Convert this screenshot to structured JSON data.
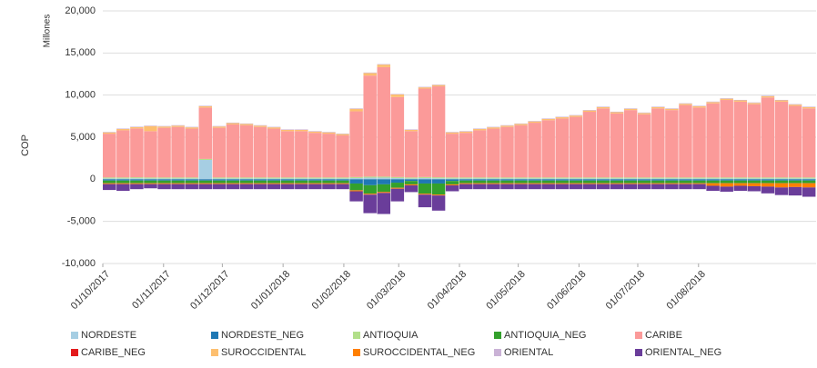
{
  "chart_data": {
    "type": "stacked-bar",
    "y_label": "COP",
    "y_unit_label": "Millones",
    "x": [
      "2017-10-01",
      "2017-10-08",
      "2017-10-15",
      "2017-10-22",
      "2017-10-29",
      "2017-11-05",
      "2017-11-12",
      "2017-11-19",
      "2017-11-26",
      "2017-12-03",
      "2017-12-10",
      "2017-12-17",
      "2017-12-24",
      "2017-12-31",
      "2018-01-07",
      "2018-01-14",
      "2018-01-21",
      "2018-01-28",
      "2018-02-04",
      "2018-02-11",
      "2018-02-18",
      "2018-02-25",
      "2018-03-04",
      "2018-03-11",
      "2018-03-18",
      "2018-03-25",
      "2018-04-01",
      "2018-04-08",
      "2018-04-15",
      "2018-04-22",
      "2018-04-29",
      "2018-05-06",
      "2018-05-13",
      "2018-05-20",
      "2018-05-27",
      "2018-06-03",
      "2018-06-10",
      "2018-06-17",
      "2018-06-24",
      "2018-07-01",
      "2018-07-08",
      "2018-07-15",
      "2018-07-22",
      "2018-07-29",
      "2018-08-05",
      "2018-08-12",
      "2018-08-19",
      "2018-08-26",
      "2018-09-02",
      "2018-09-09",
      "2018-09-16",
      "2018-09-23"
    ],
    "xlim": [
      "2017-10-01",
      "2018-09-30"
    ],
    "xticks": [
      {
        "value": "2017-10-01",
        "label": "01/10/2017"
      },
      {
        "value": "2017-11-01",
        "label": "01/11/2017"
      },
      {
        "value": "2017-12-01",
        "label": "01/12/2017"
      },
      {
        "value": "2018-01-01",
        "label": "01/01/2018"
      },
      {
        "value": "2018-02-01",
        "label": "01/02/2018"
      },
      {
        "value": "2018-03-01",
        "label": "01/03/2018"
      },
      {
        "value": "2018-04-01",
        "label": "01/04/2018"
      },
      {
        "value": "2018-05-01",
        "label": "01/05/2018"
      },
      {
        "value": "2018-06-01",
        "label": "01/06/2018"
      },
      {
        "value": "2018-07-01",
        "label": "01/07/2018"
      },
      {
        "value": "2018-08-01",
        "label": "01/08/2018"
      }
    ],
    "ylim": [
      -10000,
      20000
    ],
    "yticks": [
      {
        "value": -10000,
        "label": "-10,000"
      },
      {
        "value": -5000,
        "label": "-5,000"
      },
      0,
      {
        "value": 5000,
        "label": "5,000"
      },
      {
        "value": 10000,
        "label": "10,000"
      },
      {
        "value": 15000,
        "label": "15,000"
      },
      {
        "value": 20000,
        "label": "20,000"
      }
    ],
    "grid": true,
    "legend": "bottom",
    "series": [
      {
        "name": "NORDESTE",
        "color": "#a6cee3",
        "values": [
          100,
          100,
          120,
          100,
          100,
          100,
          100,
          2300,
          100,
          100,
          100,
          100,
          100,
          100,
          100,
          100,
          100,
          100,
          150,
          200,
          200,
          150,
          100,
          150,
          120,
          100,
          100,
          100,
          100,
          100,
          100,
          100,
          100,
          100,
          100,
          100,
          100,
          100,
          100,
          100,
          100,
          100,
          100,
          100,
          100,
          100,
          100,
          100,
          100,
          100,
          100,
          100
        ]
      },
      {
        "name": "NORDESTE_NEG",
        "color": "#1f78b4",
        "values": [
          -150,
          -150,
          -150,
          -150,
          -150,
          -150,
          -150,
          -150,
          -150,
          -150,
          -150,
          -150,
          -150,
          -150,
          -150,
          -150,
          -150,
          -150,
          -500,
          -700,
          -600,
          -400,
          -200,
          -500,
          -500,
          -200,
          -150,
          -150,
          -150,
          -150,
          -150,
          -150,
          -150,
          -150,
          -150,
          -150,
          -150,
          -150,
          -150,
          -150,
          -150,
          -150,
          -150,
          -150,
          -150,
          -150,
          -150,
          -150,
          -150,
          -150,
          -150,
          -150
        ]
      },
      {
        "name": "ANTIOQUIA",
        "color": "#b2df8a",
        "values": [
          120,
          120,
          120,
          120,
          120,
          120,
          120,
          120,
          120,
          120,
          120,
          120,
          120,
          120,
          120,
          120,
          120,
          120,
          120,
          120,
          120,
          120,
          120,
          120,
          120,
          120,
          120,
          120,
          120,
          120,
          120,
          120,
          120,
          120,
          120,
          120,
          120,
          120,
          120,
          120,
          120,
          120,
          120,
          120,
          120,
          120,
          120,
          120,
          120,
          120,
          120,
          120
        ]
      },
      {
        "name": "ANTIOQUIA_NEG",
        "color": "#33a02c",
        "values": [
          -300,
          -300,
          -300,
          -300,
          -300,
          -300,
          -300,
          -300,
          -300,
          -300,
          -300,
          -300,
          -300,
          -300,
          -300,
          -300,
          -300,
          -300,
          -800,
          -1000,
          -900,
          -600,
          -400,
          -1200,
          -1300,
          -400,
          -300,
          -300,
          -300,
          -300,
          -300,
          -300,
          -300,
          -300,
          -300,
          -300,
          -300,
          -300,
          -300,
          -300,
          -300,
          -300,
          -300,
          -300,
          -300,
          -300,
          -300,
          -300,
          -300,
          -300,
          -300,
          -300
        ]
      },
      {
        "name": "CARIBE",
        "color": "#fb9a99",
        "values": [
          5200,
          5600,
          5800,
          5500,
          5900,
          6000,
          5800,
          6100,
          5900,
          6300,
          6200,
          6000,
          5800,
          5500,
          5500,
          5300,
          5200,
          5000,
          7800,
          12000,
          13000,
          9500,
          5500,
          10500,
          10800,
          5200,
          5300,
          5600,
          5800,
          6000,
          6200,
          6500,
          6800,
          7000,
          7200,
          7800,
          8200,
          7600,
          8000,
          7500,
          8200,
          8000,
          8600,
          8300,
          8800,
          9200,
          9000,
          8700,
          9500,
          9000,
          8500,
          8200
        ]
      },
      {
        "name": "CARIBE_NEG",
        "color": "#e31a1c",
        "values": [
          -20,
          -20,
          -20,
          -20,
          -20,
          -20,
          -20,
          -20,
          -20,
          -20,
          -20,
          -20,
          -20,
          -20,
          -20,
          -20,
          -20,
          -20,
          -20,
          -20,
          -20,
          -20,
          -20,
          -20,
          -20,
          -20,
          -20,
          -20,
          -20,
          -20,
          -20,
          -20,
          -20,
          -20,
          -20,
          -20,
          -20,
          -20,
          -20,
          -20,
          -20,
          -20,
          -20,
          -20,
          -20,
          -20,
          -20,
          -20,
          -20,
          -20,
          -20,
          -20
        ]
      },
      {
        "name": "SUROCCIDENTAL",
        "color": "#fdbf6f",
        "values": [
          150,
          150,
          150,
          600,
          150,
          150,
          150,
          150,
          150,
          150,
          150,
          150,
          150,
          150,
          150,
          150,
          150,
          150,
          300,
          300,
          300,
          300,
          150,
          150,
          150,
          150,
          150,
          150,
          150,
          150,
          150,
          150,
          150,
          150,
          150,
          150,
          150,
          150,
          150,
          150,
          150,
          150,
          150,
          150,
          150,
          150,
          150,
          150,
          150,
          150,
          150,
          150
        ]
      },
      {
        "name": "SUROCCIDENTAL_NEG",
        "color": "#ff7f00",
        "values": [
          -100,
          -100,
          -100,
          -100,
          -100,
          -100,
          -100,
          -100,
          -100,
          -100,
          -100,
          -100,
          -100,
          -100,
          -100,
          -100,
          -100,
          -100,
          -100,
          -100,
          -100,
          -100,
          -100,
          -100,
          -100,
          -100,
          -100,
          -100,
          -100,
          -100,
          -100,
          -100,
          -100,
          -100,
          -100,
          -100,
          -100,
          -100,
          -100,
          -100,
          -100,
          -100,
          -100,
          -100,
          -300,
          -400,
          -300,
          -350,
          -400,
          -500,
          -450,
          -500
        ]
      },
      {
        "name": "ORIENTAL",
        "color": "#cab2d6",
        "values": [
          60,
          60,
          60,
          60,
          60,
          60,
          60,
          60,
          60,
          60,
          60,
          60,
          60,
          60,
          60,
          60,
          60,
          60,
          60,
          60,
          60,
          60,
          60,
          60,
          60,
          60,
          60,
          60,
          60,
          60,
          60,
          60,
          60,
          60,
          60,
          60,
          60,
          60,
          60,
          60,
          60,
          60,
          60,
          60,
          60,
          60,
          60,
          60,
          60,
          60,
          60,
          60
        ]
      },
      {
        "name": "ORIENTAL_NEG",
        "color": "#6a3d9a",
        "values": [
          -700,
          -800,
          -600,
          -500,
          -600,
          -600,
          -600,
          -600,
          -600,
          -600,
          -600,
          -600,
          -600,
          -600,
          -600,
          -600,
          -600,
          -600,
          -1200,
          -2200,
          -2500,
          -1500,
          -800,
          -1500,
          -1800,
          -700,
          -600,
          -600,
          -600,
          -600,
          -600,
          -600,
          -600,
          -600,
          -600,
          -600,
          -600,
          -600,
          -600,
          -600,
          -600,
          -600,
          -600,
          -600,
          -600,
          -600,
          -600,
          -600,
          -800,
          -900,
          -1000,
          -1100
        ]
      }
    ]
  }
}
